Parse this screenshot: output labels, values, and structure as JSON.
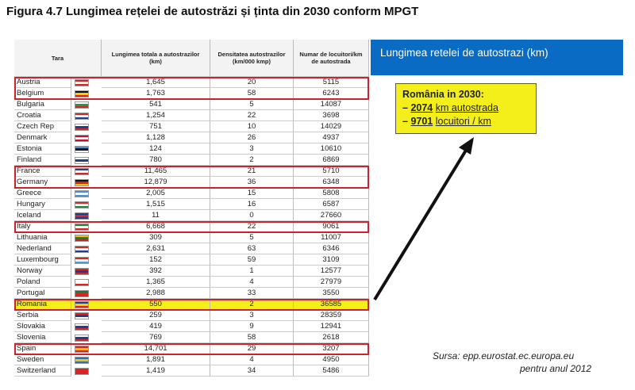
{
  "title": "Figura 4.7 Lungimea rețelei de autostrăzi și ținta din 2030 conform MPGT",
  "table": {
    "header": [
      "Tara",
      "Lungimea totala a autostrazilor (km)",
      "Densitatea autostrazilor (km/000 kmp)",
      "Numar de locuitori/km de autostrada"
    ],
    "rows": [
      [
        "Austria",
        "1,645",
        "20",
        "5115"
      ],
      [
        "Belgium",
        "1,763",
        "58",
        "6243"
      ],
      [
        "Bulgaria",
        "541",
        "5",
        "14087"
      ],
      [
        "Croatia",
        "1,254",
        "22",
        "3698"
      ],
      [
        "Czech Rep",
        "751",
        "10",
        "14029"
      ],
      [
        "Denmark",
        "1,128",
        "26",
        "4937"
      ],
      [
        "Estonia",
        "124",
        "3",
        "10610"
      ],
      [
        "Finland",
        "780",
        "2",
        "6869"
      ],
      [
        "France",
        "11,465",
        "21",
        "5710"
      ],
      [
        "Germany",
        "12,879",
        "36",
        "6348"
      ],
      [
        "Greece",
        "2,005",
        "15",
        "5808"
      ],
      [
        "Hungary",
        "1,515",
        "16",
        "6587"
      ],
      [
        "Iceland",
        "11",
        "0",
        "27660"
      ],
      [
        "Italy",
        "6,668",
        "22",
        "9061"
      ],
      [
        "Lithuania",
        "309",
        "5",
        "11007"
      ],
      [
        "Nederland",
        "2,631",
        "63",
        "6346"
      ],
      [
        "Luxembourg",
        "152",
        "59",
        "3109"
      ],
      [
        "Norway",
        "392",
        "1",
        "12577"
      ],
      [
        "Poland",
        "1,365",
        "4",
        "27979"
      ],
      [
        "Portugal",
        "2,988",
        "33",
        "3550"
      ],
      [
        "Romania",
        "550",
        "2",
        "36585"
      ],
      [
        "Serbia",
        "259",
        "3",
        "28359"
      ],
      [
        "Slovakia",
        "419",
        "9",
        "12941"
      ],
      [
        "Slovenia",
        "769",
        "58",
        "2618"
      ],
      [
        "Spain",
        "14,701",
        "29",
        "3207"
      ],
      [
        "Sweden",
        "1,891",
        "4",
        "4950"
      ],
      [
        "Switzerland",
        "1,419",
        "34",
        "5486"
      ]
    ]
  },
  "panel": {
    "title": "Lungimea retelei de autostrazi (km)",
    "callout": {
      "heading": "România in 2030:",
      "lines": [
        {
          "prefix": "–",
          "value": "2074",
          "text": "km autostrada"
        },
        {
          "prefix": "–",
          "value": "9701",
          "text": "locuitori / km"
        }
      ]
    },
    "source": [
      "Sursa: epp.eurostat.ec.europa.eu",
      "pentru anul 2012"
    ]
  }
}
